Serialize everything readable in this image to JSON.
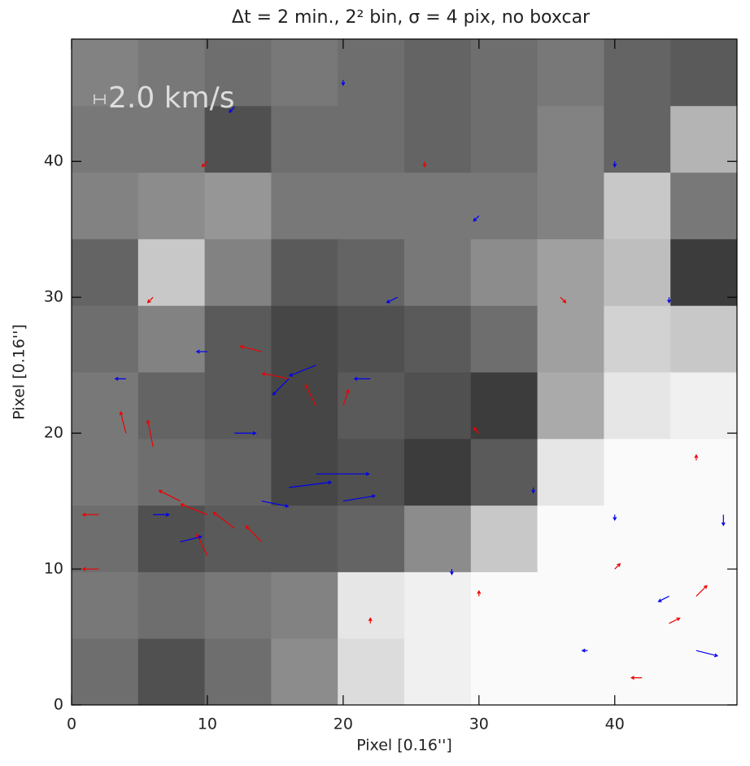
{
  "chart_data": {
    "type": "vector-field",
    "title": "Δt = 2 min., 2² bin, σ = 4 pix, no boxcar",
    "x_label": "Pixel [0.16'']",
    "y_label": "Pixel [0.16'']",
    "xlim": [
      0,
      49
    ],
    "ylim": [
      0,
      49
    ],
    "xticks": [
      0,
      10,
      20,
      30,
      40
    ],
    "yticks": [
      0,
      10,
      20,
      30,
      40
    ],
    "scale_annotation": {
      "value": 2.0,
      "label": "2.0 km/s"
    },
    "intensity": [
      [
        110,
        80,
        110,
        140,
        220,
        240,
        250,
        250,
        250,
        250
      ],
      [
        120,
        110,
        120,
        130,
        230,
        240,
        250,
        250,
        250,
        250
      ],
      [
        110,
        80,
        90,
        90,
        100,
        140,
        200,
        250,
        250,
        250
      ],
      [
        120,
        110,
        100,
        70,
        80,
        60,
        90,
        230,
        250,
        250
      ],
      [
        120,
        100,
        90,
        70,
        90,
        80,
        60,
        170,
        230,
        240
      ],
      [
        110,
        130,
        90,
        70,
        80,
        90,
        110,
        160,
        210,
        200
      ],
      [
        100,
        200,
        130,
        90,
        100,
        120,
        140,
        160,
        190,
        60
      ],
      [
        130,
        140,
        150,
        120,
        120,
        120,
        120,
        130,
        200,
        120
      ],
      [
        120,
        120,
        80,
        110,
        110,
        100,
        110,
        130,
        100,
        180
      ],
      [
        130,
        120,
        110,
        120,
        110,
        100,
        110,
        120,
        100,
        90
      ]
    ],
    "vector_sets": [
      {
        "color": "#ee0000",
        "x": [
          4,
          6,
          8,
          10,
          12,
          10,
          14,
          2,
          2,
          16,
          18,
          20,
          14,
          22,
          30,
          40,
          46,
          44,
          42,
          26,
          10,
          36,
          6,
          30,
          46
        ],
        "y": [
          20,
          19,
          15,
          14,
          13,
          11,
          12,
          14,
          10,
          24,
          22,
          22,
          26,
          6,
          8,
          10,
          8,
          6,
          2,
          40,
          40,
          30,
          30,
          20,
          18
        ],
        "u": [
          -1,
          -1,
          -4,
          -5,
          -4,
          -2,
          -3,
          -3,
          -3,
          -5,
          -2,
          1,
          -4,
          0,
          0,
          1,
          2,
          2,
          -2,
          0,
          -1,
          1,
          -1,
          -1,
          0
        ],
        "v": [
          4,
          5,
          2,
          2,
          3,
          4,
          3,
          0,
          0,
          1,
          4,
          3,
          1,
          1,
          1,
          1,
          2,
          1,
          0,
          -1,
          -1,
          -1,
          -1,
          1,
          1
        ]
      },
      {
        "color": "#0000ee",
        "x": [
          16,
          18,
          20,
          14,
          8,
          6,
          12,
          16,
          18,
          22,
          4,
          10,
          24,
          28,
          38,
          46,
          44,
          40,
          34,
          30,
          40,
          20,
          12,
          44,
          48
        ],
        "y": [
          16,
          17,
          15,
          15,
          12,
          14,
          20,
          24,
          25,
          24,
          24,
          26,
          30,
          10,
          4,
          4,
          8,
          14,
          16,
          36,
          40,
          46,
          44,
          30,
          14
        ],
        "u": [
          8,
          10,
          6,
          5,
          4,
          3,
          4,
          -3,
          -5,
          -3,
          -2,
          -2,
          -2,
          0,
          -1,
          4,
          -2,
          0,
          0,
          -1,
          0,
          0,
          -1,
          0,
          0
        ],
        "v": [
          1,
          0,
          1,
          -1,
          1,
          0,
          0,
          -3,
          -2,
          0,
          0,
          0,
          -1,
          -1,
          0,
          -1,
          -1,
          -1,
          -1,
          -1,
          -1,
          -1,
          -1,
          -1,
          -2
        ]
      }
    ]
  }
}
